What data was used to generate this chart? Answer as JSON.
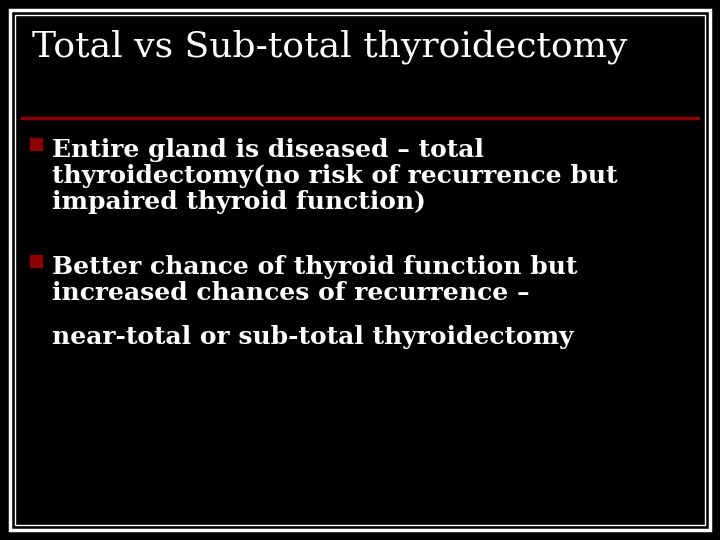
{
  "background_color": "#000000",
  "border_outer_color": "#ffffff",
  "border_inner_color": "#ffffff",
  "title": "Total vs Sub-total thyroidectomy",
  "title_color": "#ffffff",
  "title_fontsize": 26,
  "title_font": "serif",
  "separator_color": "#8b0000",
  "bullet_color": "#8b0000",
  "bullet1_text_line1": "Entire gland is diseased – total",
  "bullet1_text_line2": "thyroidectomy(no risk of recurrence but",
  "bullet1_text_line3": "impaired thyroid function)",
  "bullet2_text_line1": "Better chance of thyroid function but",
  "bullet2_text_line2": "increased chances of recurrence –",
  "extra_text": "near-total or sub-total thyroidectomy",
  "text_color": "#ffffff",
  "text_fontsize": 18,
  "text_font": "serif"
}
